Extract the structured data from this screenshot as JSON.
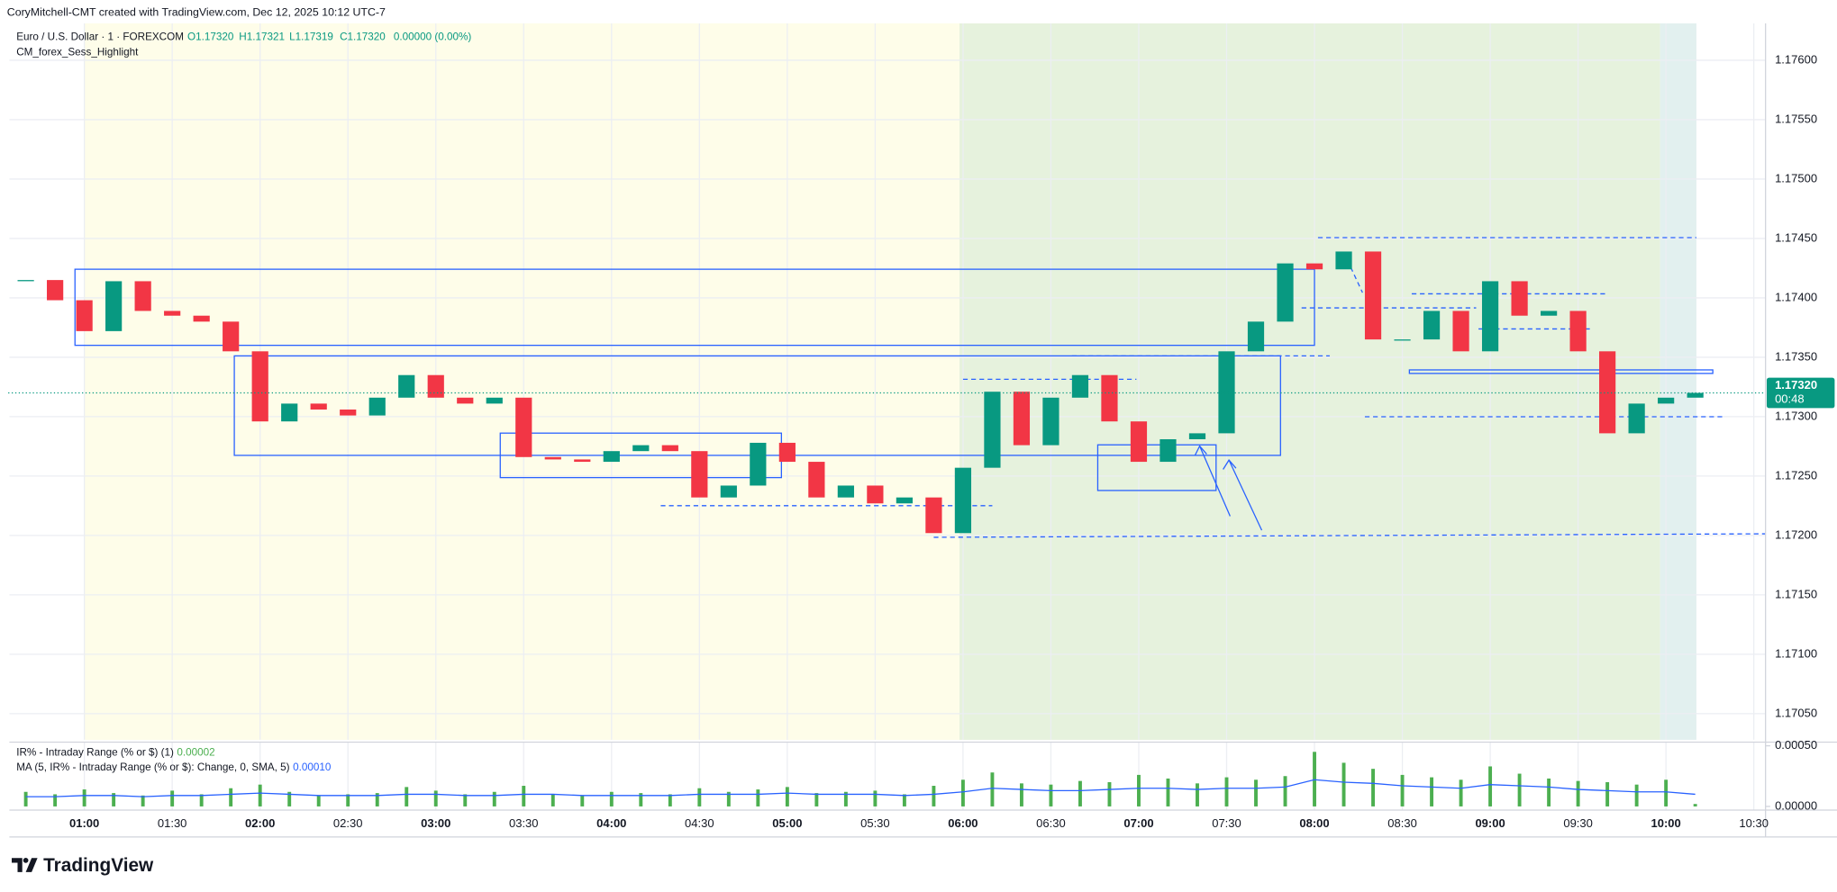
{
  "header": {
    "attribution": "CoryMitchell-CMT created with TradingView.com, Dec 12, 2025 10:12 UTC-7",
    "symbol": "Euro / U.S. Dollar · 1 · FOREXCOM",
    "open": "O1.17320",
    "high": "H1.17321",
    "low": "L1.17319",
    "close": "C1.17320",
    "change": "0.00000 (0.00%)",
    "study": "CM_forex_Sess_Highlight"
  },
  "chart_data": [
    {
      "type": "candlestick",
      "up_color": "#089981",
      "down_color": "#f23645",
      "x": [
        "00:40",
        "00:50",
        "01:00",
        "01:10",
        "01:20",
        "01:30",
        "01:40",
        "01:50",
        "02:00",
        "02:10",
        "02:20",
        "02:30",
        "02:40",
        "02:50",
        "03:00",
        "03:10",
        "03:20",
        "03:30",
        "03:40",
        "03:50",
        "04:00",
        "04:10",
        "04:20",
        "04:30",
        "04:40",
        "04:50",
        "05:00",
        "05:10",
        "05:20",
        "05:30",
        "05:40",
        "05:50",
        "06:00",
        "06:10",
        "06:20",
        "06:30",
        "06:40",
        "06:50",
        "07:00",
        "07:10",
        "07:20",
        "07:30",
        "07:40",
        "07:50",
        "08:00",
        "08:10",
        "08:20",
        "08:30",
        "08:40",
        "08:50",
        "09:00",
        "09:10",
        "09:20",
        "09:30",
        "09:40",
        "09:50",
        "10:00",
        "10:10"
      ],
      "values": [
        1.17415,
        1.17398,
        1.17372,
        1.17414,
        1.17389,
        1.17385,
        1.1738,
        1.17355,
        1.17296,
        1.17311,
        1.17306,
        1.17301,
        1.17316,
        1.17335,
        1.17316,
        1.17311,
        1.17316,
        1.17266,
        1.17264,
        1.17262,
        1.17271,
        1.17276,
        1.17271,
        1.17232,
        1.17242,
        1.17278,
        1.17262,
        1.17232,
        1.17242,
        1.17227,
        1.17232,
        1.17202,
        1.17257,
        1.17321,
        1.17276,
        1.17316,
        1.17335,
        1.17296,
        1.17262,
        1.17281,
        1.17286,
        1.17355,
        1.1738,
        1.17429,
        1.17424,
        1.17439,
        1.17365,
        1.17365,
        1.17389,
        1.17355,
        1.17414,
        1.17385,
        1.17389,
        1.17355,
        1.17286,
        1.17311,
        1.17316,
        1.1732
      ],
      "xlim": [
        "00:34",
        "10:34"
      ],
      "xticks": [
        "01:00",
        "01:30",
        "02:00",
        "02:30",
        "03:00",
        "03:30",
        "04:00",
        "04:30",
        "05:00",
        "05:30",
        "06:00",
        "06:30",
        "07:00",
        "07:30",
        "08:00",
        "08:30",
        "09:00",
        "09:30",
        "10:00",
        "10:30"
      ],
      "ylim": [
        1.17028,
        1.17631
      ],
      "yticks": [
        {
          "value": 1.1705,
          "label": "1.17050"
        },
        {
          "value": 1.171,
          "label": "1.17100"
        },
        {
          "value": 1.1715,
          "label": "1.17150"
        },
        {
          "value": 1.172,
          "label": "1.17200"
        },
        {
          "value": 1.1725,
          "label": "1.17250"
        },
        {
          "value": 1.173,
          "label": "1.17300"
        },
        {
          "value": 1.1735,
          "label": "1.17350"
        },
        {
          "value": 1.174,
          "label": "1.17400"
        },
        {
          "value": 1.1745,
          "label": "1.17450"
        },
        {
          "value": 1.175,
          "label": "1.17500"
        },
        {
          "value": 1.1755,
          "label": "1.17550"
        },
        {
          "value": 1.176,
          "label": "1.17600"
        }
      ],
      "grid": true,
      "last_price": {
        "value": 1.1732,
        "label": "1.17320"
      },
      "countdown": "00:48"
    },
    {
      "type": "bar",
      "series": [
        {
          "name": "IR% - Intraday Range (% or $) (1)",
          "color": "#4caf50",
          "last_value_label": "0.00002",
          "values": [
            0.00012,
            0.0001,
            0.00014,
            0.00011,
            9e-05,
            0.00013,
            0.0001,
            0.00015,
            0.00018,
            0.00012,
            9e-05,
            0.0001,
            0.00011,
            0.00016,
            0.00013,
            0.0001,
            0.00012,
            0.00017,
            0.0001,
            9e-05,
            0.00012,
            0.00011,
            0.0001,
            0.00015,
            0.00012,
            0.00014,
            0.00016,
            0.00011,
            0.00012,
            0.00013,
            0.0001,
            0.00017,
            0.00022,
            0.00028,
            0.00019,
            0.00018,
            0.00021,
            0.0002,
            0.00026,
            0.00023,
            0.00019,
            0.00024,
            0.00022,
            0.00025,
            0.00045,
            0.00036,
            0.00031,
            0.00026,
            0.00024,
            0.00022,
            0.00033,
            0.00027,
            0.00023,
            0.00021,
            0.0002,
            0.00018,
            0.00022,
            2e-05
          ]
        },
        {
          "name": "MA (5, IR% - Intraday Range (% or $): Change, 0, SMA, 5)",
          "color": "#2962ff",
          "last_value_label": "0.00010",
          "values": [
            8e-05,
            8e-05,
            9e-05,
            9e-05,
            8e-05,
            9e-05,
            9e-05,
            0.0001,
            0.00011,
            0.0001,
            9e-05,
            9e-05,
            9e-05,
            0.0001,
            0.0001,
            9e-05,
            9e-05,
            0.0001,
            0.0001,
            9e-05,
            9e-05,
            9e-05,
            9e-05,
            0.0001,
            0.0001,
            0.0001,
            0.00011,
            0.0001,
            0.0001,
            0.0001,
            9e-05,
            0.0001,
            0.00012,
            0.00015,
            0.00014,
            0.00013,
            0.00013,
            0.00014,
            0.00015,
            0.00015,
            0.00014,
            0.00015,
            0.00015,
            0.00016,
            0.00022,
            0.0002,
            0.00019,
            0.00017,
            0.00016,
            0.00015,
            0.00018,
            0.00017,
            0.00016,
            0.00014,
            0.00013,
            0.00012,
            0.00012,
            0.0001
          ]
        }
      ],
      "ylim": [
        -3e-05,
        0.00053
      ],
      "yticks": [
        {
          "value": 0,
          "label": "0.00000"
        },
        {
          "value": 0.0005,
          "label": "0.00050"
        }
      ]
    }
  ],
  "footer": {
    "brand": "TradingView"
  }
}
